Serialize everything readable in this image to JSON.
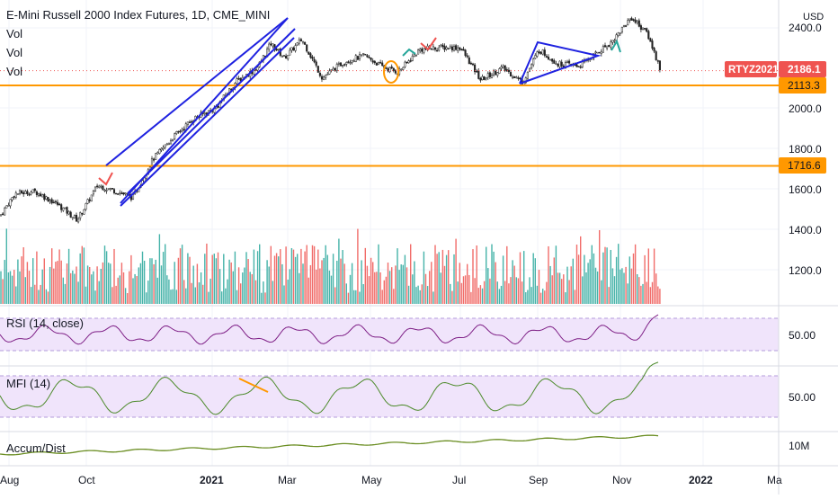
{
  "header": {
    "title": "E-Mini Russell 2000 Index Futures, 1D, CME_MINI",
    "legend_lines": [
      "Vol",
      "Vol",
      "Vol"
    ]
  },
  "price_axis": {
    "currency": "USD",
    "ticks": [
      "2400.0",
      "2000.0",
      "1800.0",
      "1600.0",
      "1400.0",
      "1200.0"
    ],
    "last_symbol": "RTYZ2021",
    "last_value": "2186.1",
    "level_1": "2113.3",
    "level_2": "1716.6"
  },
  "time_axis": {
    "ticks": [
      "Aug",
      "Oct",
      "2021",
      "Mar",
      "May",
      "Jul",
      "Sep",
      "Nov",
      "2022",
      "Ma"
    ]
  },
  "indicators": {
    "rsi": {
      "label": "RSI (14, close)",
      "tick": "50.00"
    },
    "mfi": {
      "label": "MFI (14)",
      "tick": "50.00"
    },
    "accdist": {
      "label": "Accum/Dist",
      "tick": "10M"
    }
  },
  "colors": {
    "up": "#26a69a",
    "down": "#ef5350",
    "channel": "#1f22e0",
    "level": "#ff9800",
    "last_badge": "#ef5350",
    "rsi_line": "#7e1f86",
    "mfi_line": "#4c8a2a",
    "band_fill": "#f0e4fb",
    "accdist_line": "#6b8e23"
  },
  "chart_data": {
    "type": "candlestick",
    "instrument": "E-Mini Russell 2000 Index Futures",
    "timeframe": "1D",
    "exchange": "CME_MINI",
    "currency": "USD",
    "price_range": [
      1400,
      2450
    ],
    "price_path": [
      [
        "2020-07-30",
        1470
      ],
      [
        "2020-08-10",
        1580
      ],
      [
        "2020-08-25",
        1590
      ],
      [
        "2020-09-10",
        1530
      ],
      [
        "2020-09-25",
        1450
      ],
      [
        "2020-10-10",
        1620
      ],
      [
        "2020-10-25",
        1590
      ],
      [
        "2020-11-05",
        1560
      ],
      [
        "2020-11-20",
        1750
      ],
      [
        "2020-12-05",
        1860
      ],
      [
        "2020-12-20",
        1950
      ],
      [
        "2021-01-05",
        2000
      ],
      [
        "2021-01-20",
        2130
      ],
      [
        "2021-02-05",
        2200
      ],
      [
        "2021-02-15",
        2320
      ],
      [
        "2021-02-25",
        2250
      ],
      [
        "2021-03-10",
        2340
      ],
      [
        "2021-03-25",
        2150
      ],
      [
        "2021-04-10",
        2230
      ],
      [
        "2021-04-25",
        2260
      ],
      [
        "2021-05-10",
        2200
      ],
      [
        "2021-05-20",
        2180
      ],
      [
        "2021-06-05",
        2290
      ],
      [
        "2021-06-20",
        2300
      ],
      [
        "2021-07-05",
        2300
      ],
      [
        "2021-07-20",
        2140
      ],
      [
        "2021-08-05",
        2200
      ],
      [
        "2021-08-20",
        2130
      ],
      [
        "2021-09-01",
        2290
      ],
      [
        "2021-09-15",
        2220
      ],
      [
        "2021-10-01",
        2210
      ],
      [
        "2021-10-15",
        2280
      ],
      [
        "2021-10-25",
        2330
      ],
      [
        "2021-11-08",
        2450
      ],
      [
        "2021-11-20",
        2370
      ],
      [
        "2021-11-30",
        2186.1
      ]
    ],
    "horizontal_levels": [
      2113.3,
      1716.6
    ],
    "last_price": 2186.1,
    "indicators": [
      "Vol",
      "RSI (14, close)",
      "MFI (14)",
      "Accum/Dist"
    ],
    "rsi_levels": [
      70,
      50,
      30
    ],
    "mfi_levels": [
      80,
      50,
      20
    ]
  }
}
